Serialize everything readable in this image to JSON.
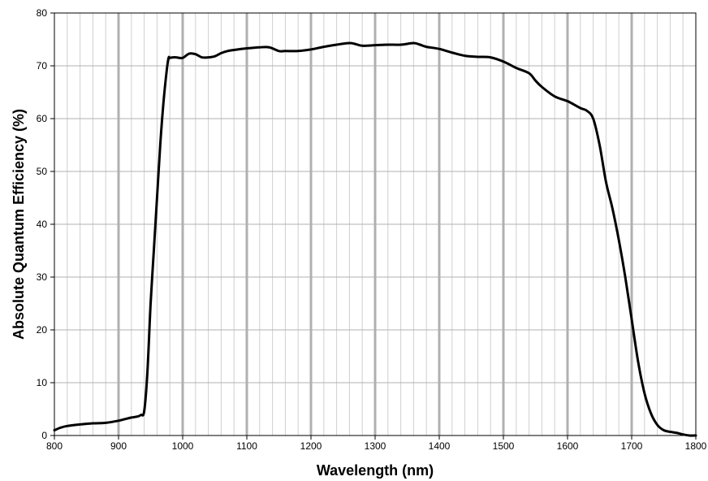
{
  "chart_data": {
    "type": "line",
    "title": "",
    "xlabel": "Wavelength (nm)",
    "ylabel": "Absolute  Quantum Efficiency (%)",
    "xlim": [
      800,
      1800
    ],
    "ylim": [
      0,
      80
    ],
    "x_major_ticks": [
      800,
      900,
      1000,
      1100,
      1200,
      1300,
      1400,
      1500,
      1600,
      1700,
      1800
    ],
    "y_major_ticks": [
      0,
      10,
      20,
      30,
      40,
      50,
      60,
      70,
      80
    ],
    "x_tick_labels": [
      "800",
      "900",
      "1000",
      "1100",
      "1200",
      "1300",
      "1400",
      "1500",
      "1600",
      "1700",
      "1800"
    ],
    "y_tick_labels": [
      "0",
      "10",
      "20",
      "30",
      "40",
      "50",
      "60",
      "70",
      "80"
    ],
    "x_minor_step": 20,
    "y_minor_step": 10,
    "grid": true,
    "legend": "none",
    "colors": {
      "line": "#000000",
      "major_grid": "#b0b0b0",
      "minor_grid": "#cfcfcf",
      "axis": "#000000",
      "background": "#ffffff"
    },
    "series": [
      {
        "x": [
          800,
          810,
          820,
          840,
          860,
          880,
          900,
          910,
          920,
          930,
          935,
          940,
          945,
          950,
          955,
          960,
          965,
          970,
          975,
          978,
          980,
          985,
          990,
          1000,
          1010,
          1020,
          1030,
          1040,
          1050,
          1060,
          1070,
          1080,
          1100,
          1120,
          1135,
          1150,
          1160,
          1180,
          1200,
          1220,
          1240,
          1260,
          1270,
          1280,
          1300,
          1320,
          1340,
          1360,
          1370,
          1380,
          1400,
          1420,
          1440,
          1460,
          1480,
          1500,
          1520,
          1540,
          1550,
          1560,
          1580,
          1600,
          1620,
          1630,
          1640,
          1650,
          1660,
          1670,
          1680,
          1690,
          1700,
          1710,
          1720,
          1730,
          1740,
          1750,
          1760,
          1770,
          1780,
          1790,
          1800
        ],
        "y": [
          1.0,
          1.5,
          1.8,
          2.1,
          2.3,
          2.4,
          2.8,
          3.1,
          3.4,
          3.6,
          3.9,
          4.6,
          12,
          25,
          35,
          45,
          55,
          63,
          69,
          71.5,
          71.5,
          71.6,
          71.6,
          71.5,
          72.3,
          72.2,
          71.6,
          71.6,
          71.8,
          72.4,
          72.8,
          73.0,
          73.3,
          73.5,
          73.5,
          72.8,
          72.8,
          72.8,
          73.1,
          73.6,
          74.0,
          74.3,
          74.1,
          73.8,
          73.9,
          74.0,
          74.0,
          74.3,
          74.0,
          73.6,
          73.2,
          72.5,
          71.9,
          71.7,
          71.6,
          70.8,
          69.6,
          68.6,
          67.2,
          66.0,
          64.2,
          63.3,
          62.0,
          61.5,
          60.0,
          55.0,
          48.0,
          43.0,
          37.0,
          30.0,
          22.0,
          14.0,
          8.0,
          4.2,
          2.0,
          1.0,
          0.7,
          0.5,
          0.2,
          0.0,
          0.0
        ]
      }
    ]
  }
}
